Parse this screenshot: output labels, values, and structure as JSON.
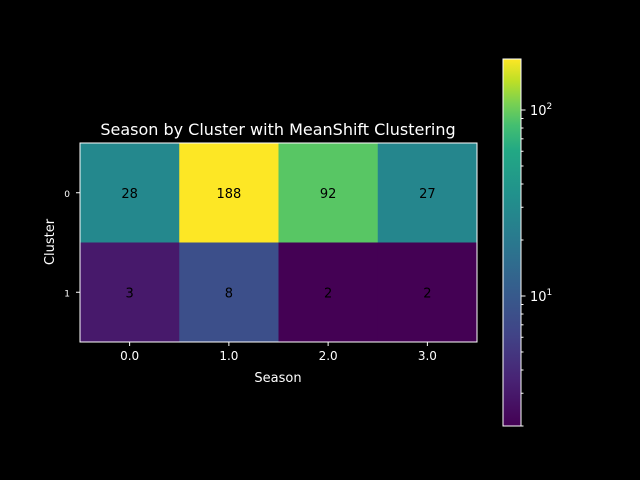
{
  "chart_data": {
    "type": "heatmap",
    "title": "Season by Cluster with MeanShift Clustering",
    "xlabel": "Season",
    "ylabel": "Cluster",
    "x_categories": [
      "0.0",
      "1.0",
      "2.0",
      "3.0"
    ],
    "y_categories": [
      "0",
      "1"
    ],
    "values": [
      [
        28,
        188,
        92,
        27
      ],
      [
        3,
        8,
        2,
        2
      ]
    ],
    "colormap": "viridis",
    "color_scale": "log",
    "color_range": [
      2,
      188
    ],
    "colorbar": {
      "position": "right",
      "ticks": [
        {
          "base": "10",
          "exp": "1",
          "value": 10
        },
        {
          "base": "10",
          "exp": "2",
          "value": 100
        }
      ]
    },
    "background": "#000000",
    "grid": false
  }
}
